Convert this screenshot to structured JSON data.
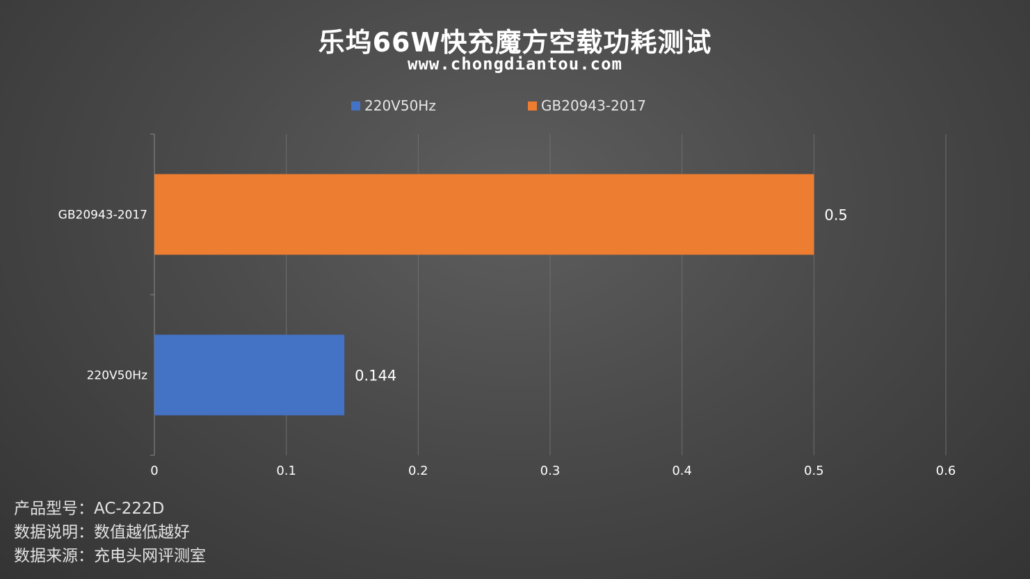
{
  "title": "乐坞66W快充魔方空载功耗测试",
  "subtitle": "www.chongdiantou.com",
  "colors": {
    "series_220V50Hz": "#4472c4",
    "series_GB20943": "#ed7d31",
    "gridline": "#6e6e6e",
    "axis_text": "#ffffff"
  },
  "legend": [
    {
      "label": "220V50Hz",
      "color": "#4472c4"
    },
    {
      "label": "GB20943-2017",
      "color": "#ed7d31"
    }
  ],
  "chart_data": {
    "type": "bar",
    "orientation": "horizontal",
    "categories": [
      "GB20943-2017",
      "220V50Hz"
    ],
    "series": [
      {
        "name": "GB20943-2017",
        "category": "GB20943-2017",
        "value": 0.5,
        "label": "0.5",
        "color": "#ed7d31"
      },
      {
        "name": "220V50Hz",
        "category": "220V50Hz",
        "value": 0.144,
        "label": "0.144",
        "color": "#4472c4"
      }
    ],
    "xlim": [
      0,
      0.6
    ],
    "xticks": [
      "0",
      "0.1",
      "0.2",
      "0.3",
      "0.4",
      "0.5",
      "0.6"
    ],
    "grid": true,
    "legend_position": "top"
  },
  "footer": {
    "line1": "产品型号：AC-222D",
    "line2": "数据说明：数值越低越好",
    "line3": "数据来源：充电头网评测室"
  }
}
